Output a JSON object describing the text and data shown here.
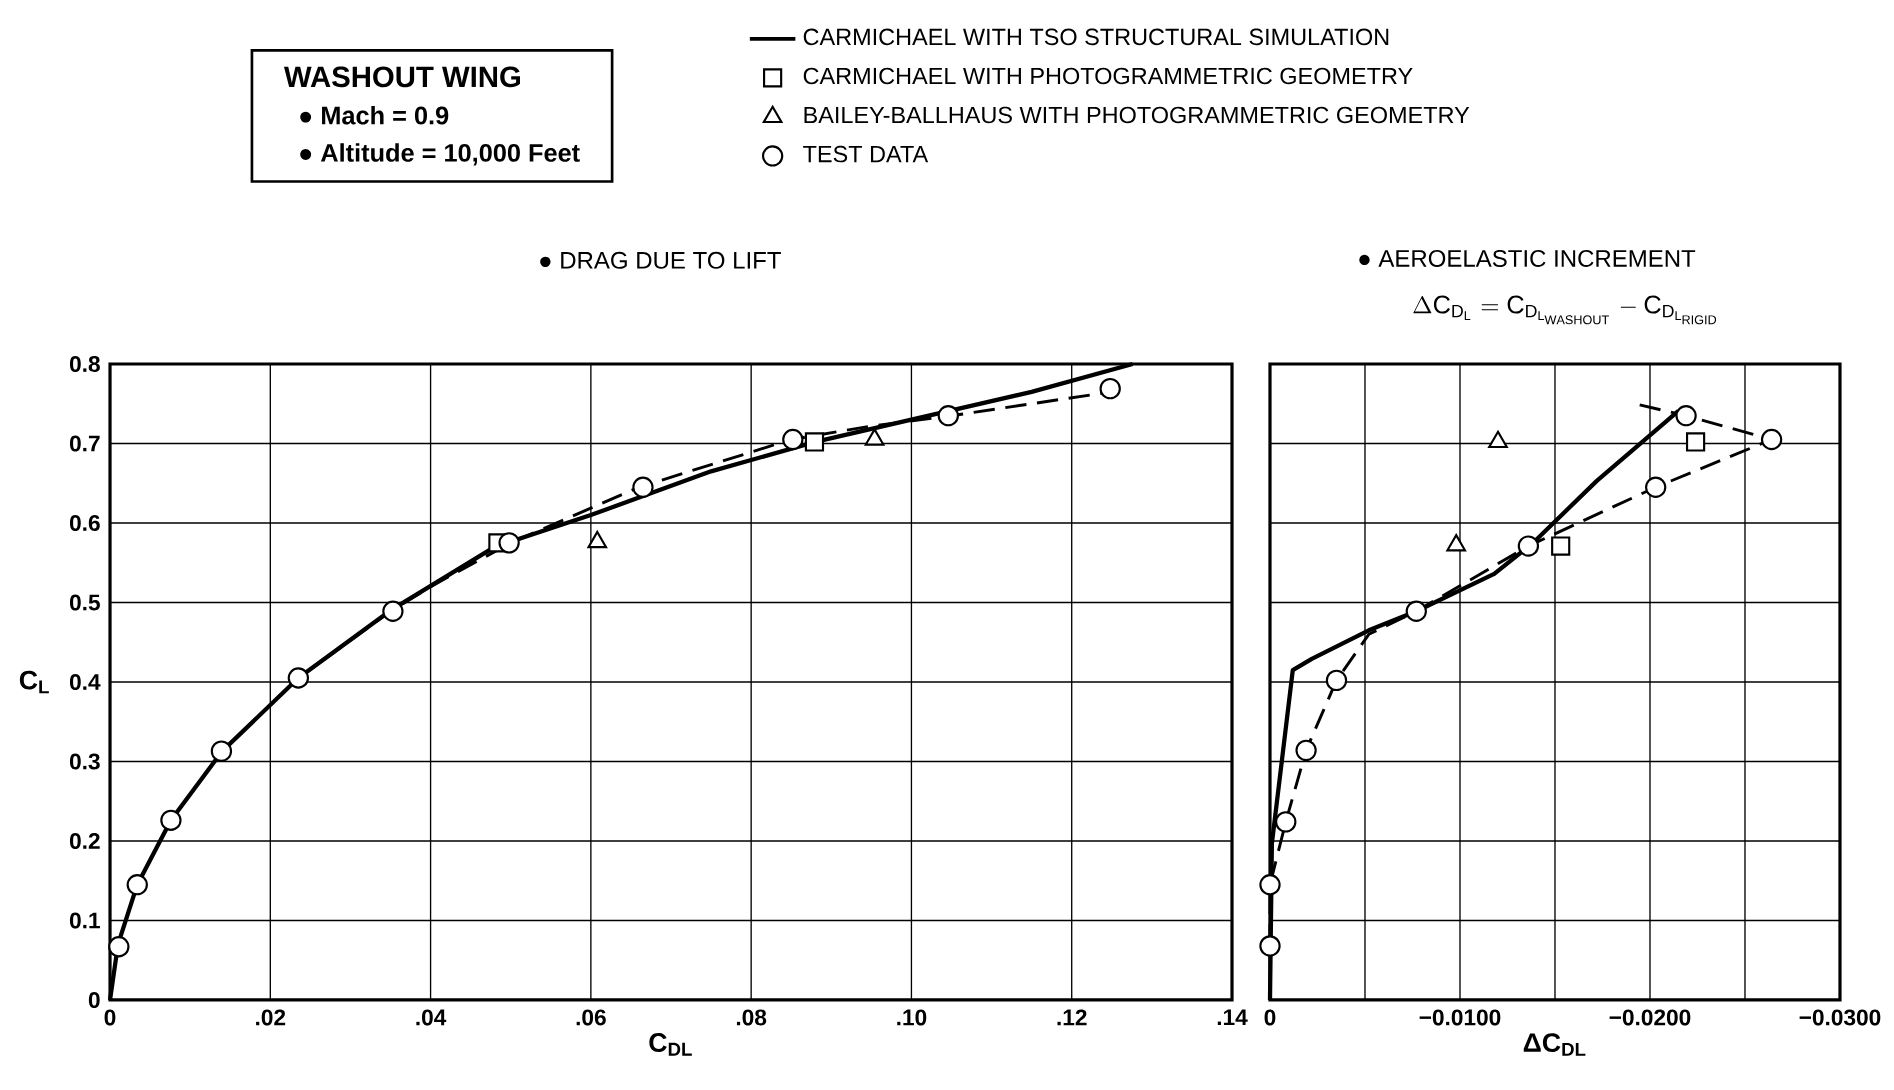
{
  "chart_data": [
    {
      "type": "line",
      "title": "● DRAG DUE TO LIFT",
      "xlabel": "C$_{DL}$",
      "ylabel": "C$_{L}$",
      "annotations": [
        "WASHOUT WING",
        "● Mach = 0.9",
        "● Altitude = 10,000 Feet"
      ],
      "xlim": [
        0,
        0.14
      ],
      "ylim": [
        0,
        0.8
      ],
      "xticks": [
        0,
        {
          "value": 0.02,
          "label": ".02"
        },
        {
          "value": 0.04,
          "label": ".04"
        },
        {
          "value": 0.06,
          "label": ".06"
        },
        {
          "value": 0.08,
          "label": ".08"
        },
        {
          "value": 0.1,
          "label": ".10"
        },
        {
          "value": 0.12,
          "label": ".12"
        },
        {
          "value": 0.14,
          "label": ".14"
        }
      ],
      "yticks": [
        0,
        0.1,
        0.2,
        0.3,
        0.4,
        0.5,
        0.6,
        0.7,
        0.8
      ],
      "grid": true,
      "legend": "top right",
      "series": [
        {
          "name": "CARMICHAEL WITH TSO STRUCTURAL SIMULATION",
          "color": "#000000",
          "marker": "none",
          "line_style": "solid",
          "x": [
            0,
            0.001,
            0.0034,
            0.0076,
            0.014,
            0.0235,
            0.035,
            0.048,
            0.06,
            0.075,
            0.088,
            0.1,
            0.115,
            0.1276
          ],
          "values": [
            0,
            0.07,
            0.145,
            0.226,
            0.313,
            0.405,
            0.49,
            0.57,
            0.61,
            0.665,
            0.702,
            0.73,
            0.765,
            0.8
          ]
        },
        {
          "color": "#000000",
          "marker": "none",
          "line_style": "dashed",
          "x": [
            0.0235,
            0.035,
            0.04,
            0.05,
            0.066,
            0.085,
            0.095,
            0.105,
            0.115,
            0.125
          ],
          "values": [
            0.405,
            0.489,
            0.52,
            0.575,
            0.645,
            0.705,
            0.722,
            0.735,
            0.75,
            0.765
          ]
        },
        {
          "name": "CARMICHAEL WITH PHOTOGRAMMETRIC GEOMETRY",
          "type": "scatter",
          "color": "#000000",
          "marker": "square",
          "x": [
            0.0484,
            0.0879
          ],
          "values": [
            0.575,
            0.702
          ]
        },
        {
          "name": "BAILEY-BALLHAUS WITH PHOTOGRAMMETRIC GEOMETRY",
          "type": "scatter",
          "color": "#000000",
          "marker": "triangle",
          "x": [
            0.0608,
            0.0954
          ],
          "values": [
            0.576,
            0.705
          ]
        },
        {
          "name": "TEST DATA",
          "type": "scatter",
          "color": "#000000",
          "marker": "circle",
          "x": [
            0.0011,
            0.0034,
            0.0076,
            0.0139,
            0.0235,
            0.0353,
            0.0498,
            0.0665,
            0.0852,
            0.1046,
            0.1248
          ],
          "values": [
            0.067,
            0.145,
            0.226,
            0.313,
            0.405,
            0.489,
            0.575,
            0.645,
            0.705,
            0.735,
            0.769
          ]
        }
      ]
    },
    {
      "type": "line",
      "title": "● AEROELASTIC INCREMENT",
      "subtitle": "\\Delta \\mathrm{C}_{\\mathrm{D}_{\\mathrm{L}}} = \\mathrm{C}_{\\mathrm{D}_{\\mathrm{L}_{\\mathrm{WASHOUT}}}} - \\mathrm{C}_{\\mathrm{D}_{\\mathrm{L}_{\\mathrm{RIGID}}}}",
      "xlabel": "ΔC$_{DL}$",
      "xlim": [
        0,
        -0.03
      ],
      "ylim": [
        0,
        0.8
      ],
      "xticks": [
        0,
        {
          "value": -0.005,
          "label": null
        },
        {
          "value": -0.01,
          "label": "−0.0100"
        },
        {
          "value": -0.015,
          "label": null
        },
        {
          "value": -0.02,
          "label": "−0.0200"
        },
        {
          "value": -0.025,
          "label": null
        },
        {
          "value": -0.03,
          "label": "−0.0300"
        }
      ],
      "yticks": [
        0,
        0.1,
        0.2,
        0.3,
        0.4,
        0.5,
        0.6,
        0.7,
        0.8
      ],
      "tick_labels": "x",
      "grid": true,
      "series": [
        {
          "color": "#000000",
          "marker": "none",
          "line_style": "solid",
          "x": [
            0,
            -0.0001,
            -0.0012,
            -0.0022,
            -0.0052,
            -0.0077,
            -0.0118,
            -0.0138,
            -0.0172,
            -0.0215
          ],
          "values": [
            0,
            0.197,
            0.415,
            0.429,
            0.465,
            0.489,
            0.536,
            0.574,
            0.653,
            0.741
          ]
        },
        {
          "color": "#000000",
          "marker": "none",
          "line_style": "dashed",
          "x": [
            0,
            0,
            -0.00083,
            -0.0019,
            -0.0035,
            -0.0052,
            -0.0077,
            -0.0136,
            -0.0203,
            -0.0264,
            -0.0219,
            -0.0192
          ],
          "values": [
            0.068,
            0.145,
            0.224,
            0.314,
            0.402,
            0.46,
            0.489,
            0.571,
            0.645,
            0.705,
            0.735,
            0.75
          ]
        },
        {
          "type": "scatter",
          "color": "#000000",
          "marker": "square",
          "x": [
            -0.0224,
            -0.0153
          ],
          "values": [
            0.702,
            0.571
          ]
        },
        {
          "type": "scatter",
          "color": "#000000",
          "marker": "triangle",
          "x": [
            -0.012,
            -0.0098
          ],
          "values": [
            0.702,
            0.572
          ]
        },
        {
          "type": "scatter",
          "color": "#000000",
          "marker": "circle",
          "x": [
            0,
            0,
            -0.00083,
            -0.0019,
            -0.0035,
            -0.0077,
            -0.0136,
            -0.0203,
            -0.0264,
            -0.0219
          ],
          "values": [
            0.068,
            0.145,
            0.224,
            0.314,
            0.402,
            0.489,
            0.571,
            0.645,
            0.705,
            0.735
          ]
        }
      ]
    }
  ]
}
